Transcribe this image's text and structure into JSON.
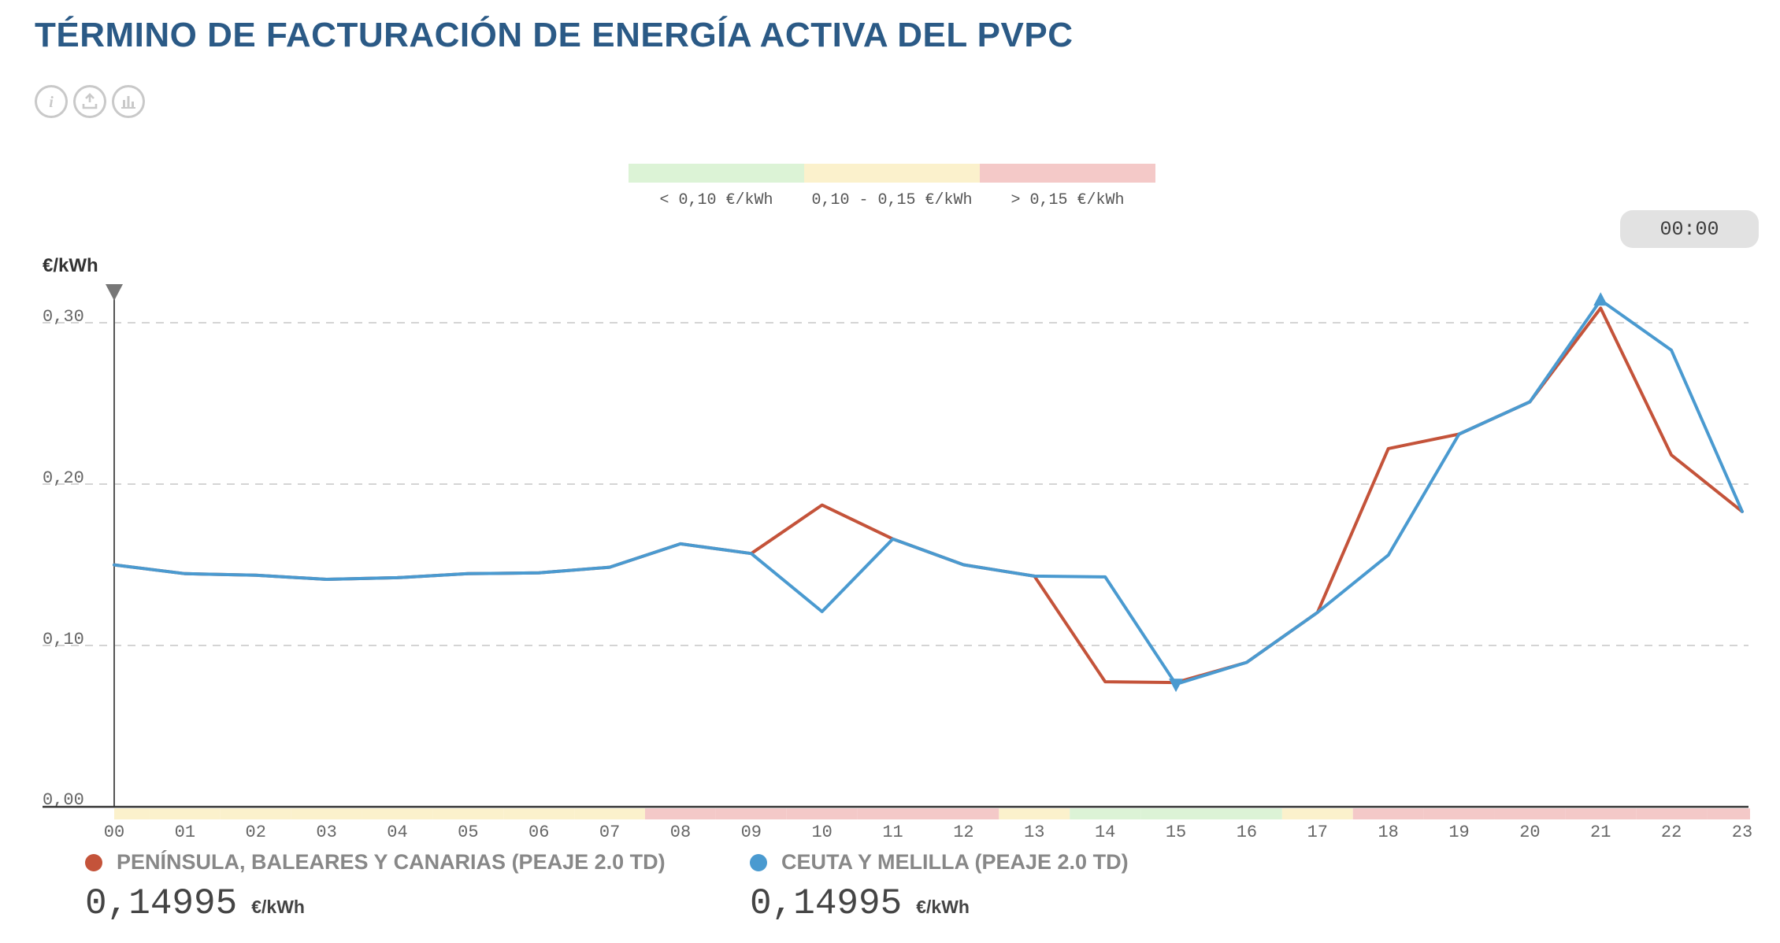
{
  "title": "TÉRMINO DE FACTURACIÓN DE ENERGÍA ACTIVA DEL PVPC",
  "toolbar": [
    {
      "icon": "info-icon",
      "glyph": "i"
    },
    {
      "icon": "download-icon"
    },
    {
      "icon": "bar-chart-icon"
    }
  ],
  "time_display": "00:00",
  "price_scale": [
    {
      "label": "< 0,10 €/kWh",
      "color": "#dcf3d6"
    },
    {
      "label": "0,10 - 0,15 €/kWh",
      "color": "#fbf1cc"
    },
    {
      "label": "> 0,15 €/kWh",
      "color": "#f4c9c8"
    }
  ],
  "series_legend": [
    {
      "name": "PENÍNSULA, BALEARES Y CANARIAS (PEAJE 2.0 TD)",
      "color": "#c4533a",
      "value": "0,14995",
      "unit": "€/kWh"
    },
    {
      "name": "CEUTA Y MELILLA (PEAJE 2.0 TD)",
      "color": "#4a9ad0",
      "value": "0,14995",
      "unit": "€/kWh"
    }
  ],
  "chart_data": {
    "type": "line",
    "ylabel": "€/kWh",
    "ylim": [
      0,
      0.3
    ],
    "yticks": [
      "0,00",
      "0,10",
      "0,20",
      "0,30"
    ],
    "categories": [
      "00",
      "01",
      "02",
      "03",
      "04",
      "05",
      "06",
      "07",
      "08",
      "09",
      "10",
      "11",
      "12",
      "13",
      "14",
      "15",
      "16",
      "17",
      "18",
      "19",
      "20",
      "21",
      "22",
      "23"
    ],
    "grid": "horizontal-dashed",
    "series": [
      {
        "name": "PENÍNSULA, BALEARES Y CANARIAS (PEAJE 2.0 TD)",
        "color": "#c4533a",
        "values": [
          0.14995,
          0.1445,
          0.1435,
          0.141,
          0.142,
          0.1445,
          0.145,
          0.1485,
          0.163,
          0.157,
          0.187,
          0.166,
          0.15,
          0.143,
          0.0775,
          0.077,
          0.0895,
          0.1205,
          0.222,
          0.231,
          0.251,
          0.309,
          0.218,
          0.183
        ]
      },
      {
        "name": "CEUTA Y MELILLA (PEAJE 2.0 TD)",
        "color": "#4a9ad0",
        "values": [
          0.14995,
          0.1445,
          0.1435,
          0.141,
          0.142,
          0.1445,
          0.145,
          0.1485,
          0.163,
          0.157,
          0.121,
          0.166,
          0.15,
          0.143,
          0.1425,
          0.076,
          0.0895,
          0.1205,
          0.156,
          0.231,
          0.251,
          0.314,
          0.283,
          0.183
        ]
      }
    ],
    "hour_band_colors": [
      "#fbf1cc",
      "#fbf1cc",
      "#fbf1cc",
      "#fbf1cc",
      "#fbf1cc",
      "#fbf1cc",
      "#fbf1cc",
      "#fbf1cc",
      "#f4c9c8",
      "#f4c9c8",
      "#f4c9c8",
      "#f4c9c8",
      "#f4c9c8",
      "#fbf1cc",
      "#dcf3d6",
      "#dcf3d6",
      "#dcf3d6",
      "#fbf1cc",
      "#f4c9c8",
      "#f4c9c8",
      "#f4c9c8",
      "#f4c9c8",
      "#f4c9c8",
      "#f4c9c8"
    ],
    "max_marker": {
      "hour": "21",
      "value": 0.314
    },
    "min_marker": {
      "hour": "15",
      "value": 0.076
    }
  }
}
